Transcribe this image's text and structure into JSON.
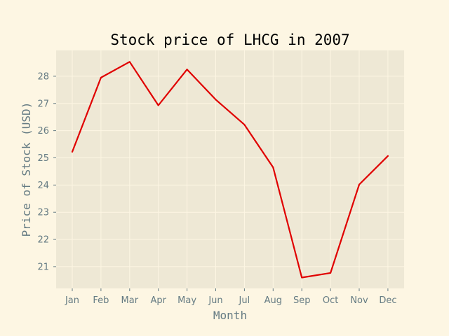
{
  "chart_data": {
    "type": "line",
    "title": "Stock price of LHCG in 2007",
    "xlabel": "Month",
    "ylabel": "Price of Stock (USD)",
    "categories": [
      "Jan",
      "Feb",
      "Mar",
      "Apr",
      "May",
      "Jun",
      "Jul",
      "Aug",
      "Sep",
      "Oct",
      "Nov",
      "Dec"
    ],
    "series": [
      {
        "values": [
          25.22,
          27.95,
          28.53,
          26.93,
          28.25,
          27.14,
          26.22,
          24.65,
          20.6,
          20.77,
          24.02,
          25.07
        ]
      }
    ],
    "yticks": [
      21,
      22,
      23,
      24,
      25,
      26,
      27,
      28
    ],
    "ylim": [
      20.2,
      28.95
    ],
    "grid": true,
    "legend": false,
    "colors": {
      "line": "#e00000",
      "plot_background": "#eee8d5",
      "figure_background": "#fdf6e3",
      "grid": "#fdf6e3",
      "tick_text": "#657b83",
      "title_text": "#000000"
    }
  }
}
